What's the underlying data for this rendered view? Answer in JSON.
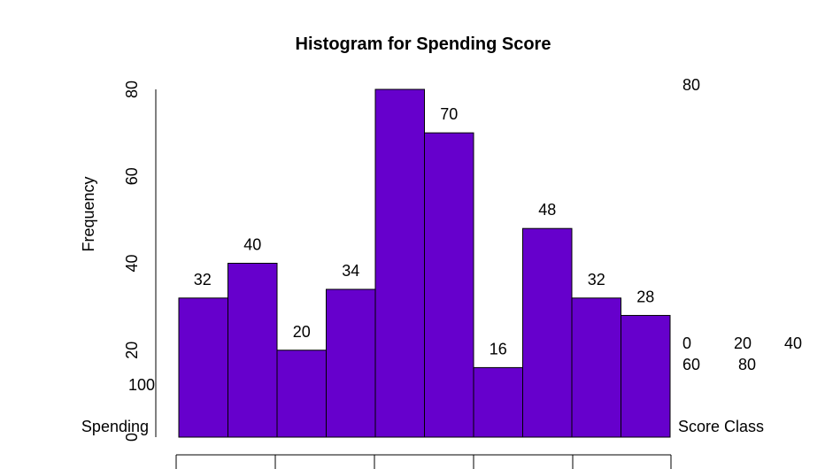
{
  "chart_data": {
    "type": "bar",
    "title": "Histogram for Spending Score",
    "ylabel": "Frequency",
    "yticks": [
      "0",
      "20",
      "40",
      "60",
      "80"
    ],
    "ylim": [
      0,
      80
    ],
    "bar_color": "#6600CC",
    "values": [
      32,
      40,
      20,
      34,
      80,
      70,
      16,
      48,
      32,
      28
    ],
    "data_labels": [
      "32",
      "40",
      "20",
      "34",
      "",
      "70",
      "16",
      "48",
      "32",
      "28"
    ],
    "stray_labels": {
      "top_right": "80",
      "left_mid": "100",
      "left_bottom": "Spending",
      "right_bottom": "Score Class",
      "right_row1": [
        "0",
        "20",
        "40"
      ],
      "right_row2": [
        "60",
        "80"
      ]
    }
  }
}
